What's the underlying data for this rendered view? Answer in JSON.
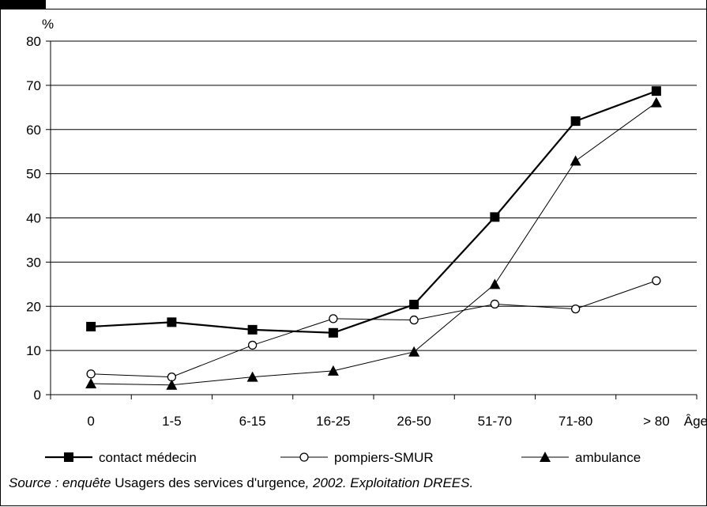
{
  "chart_data": {
    "type": "line",
    "ylabel": "%",
    "xlabel": "Âge",
    "ylim": [
      0,
      80
    ],
    "yticks": [
      0,
      10,
      20,
      30,
      40,
      50,
      60,
      70,
      80
    ],
    "grid": true,
    "legend_placement": "bottom",
    "categories": [
      "0",
      "1-5",
      "6-15",
      "16-25",
      "26-50",
      "51-70",
      "71-80",
      "> 80"
    ],
    "series": [
      {
        "name": "contact médecin",
        "marker": "square",
        "values": [
          15.4,
          16.4,
          14.7,
          14.0,
          20.4,
          40.2,
          61.9,
          68.7
        ],
        "color": "#000000"
      },
      {
        "name": "pompiers-SMUR",
        "marker": "circle",
        "values": [
          4.7,
          4.0,
          11.2,
          17.2,
          16.9,
          20.5,
          19.4,
          25.8
        ],
        "color": "#000000"
      },
      {
        "name": "ambulance",
        "marker": "triangle",
        "values": [
          2.5,
          2.2,
          4.0,
          5.4,
          9.7,
          25.0,
          52.9,
          66.1
        ],
        "color": "#000000"
      }
    ]
  },
  "source": {
    "part1": "Source : enquête",
    "part2": " Usagers des services d'urgence",
    "part3": ", 2002. Exploitation DREES."
  }
}
